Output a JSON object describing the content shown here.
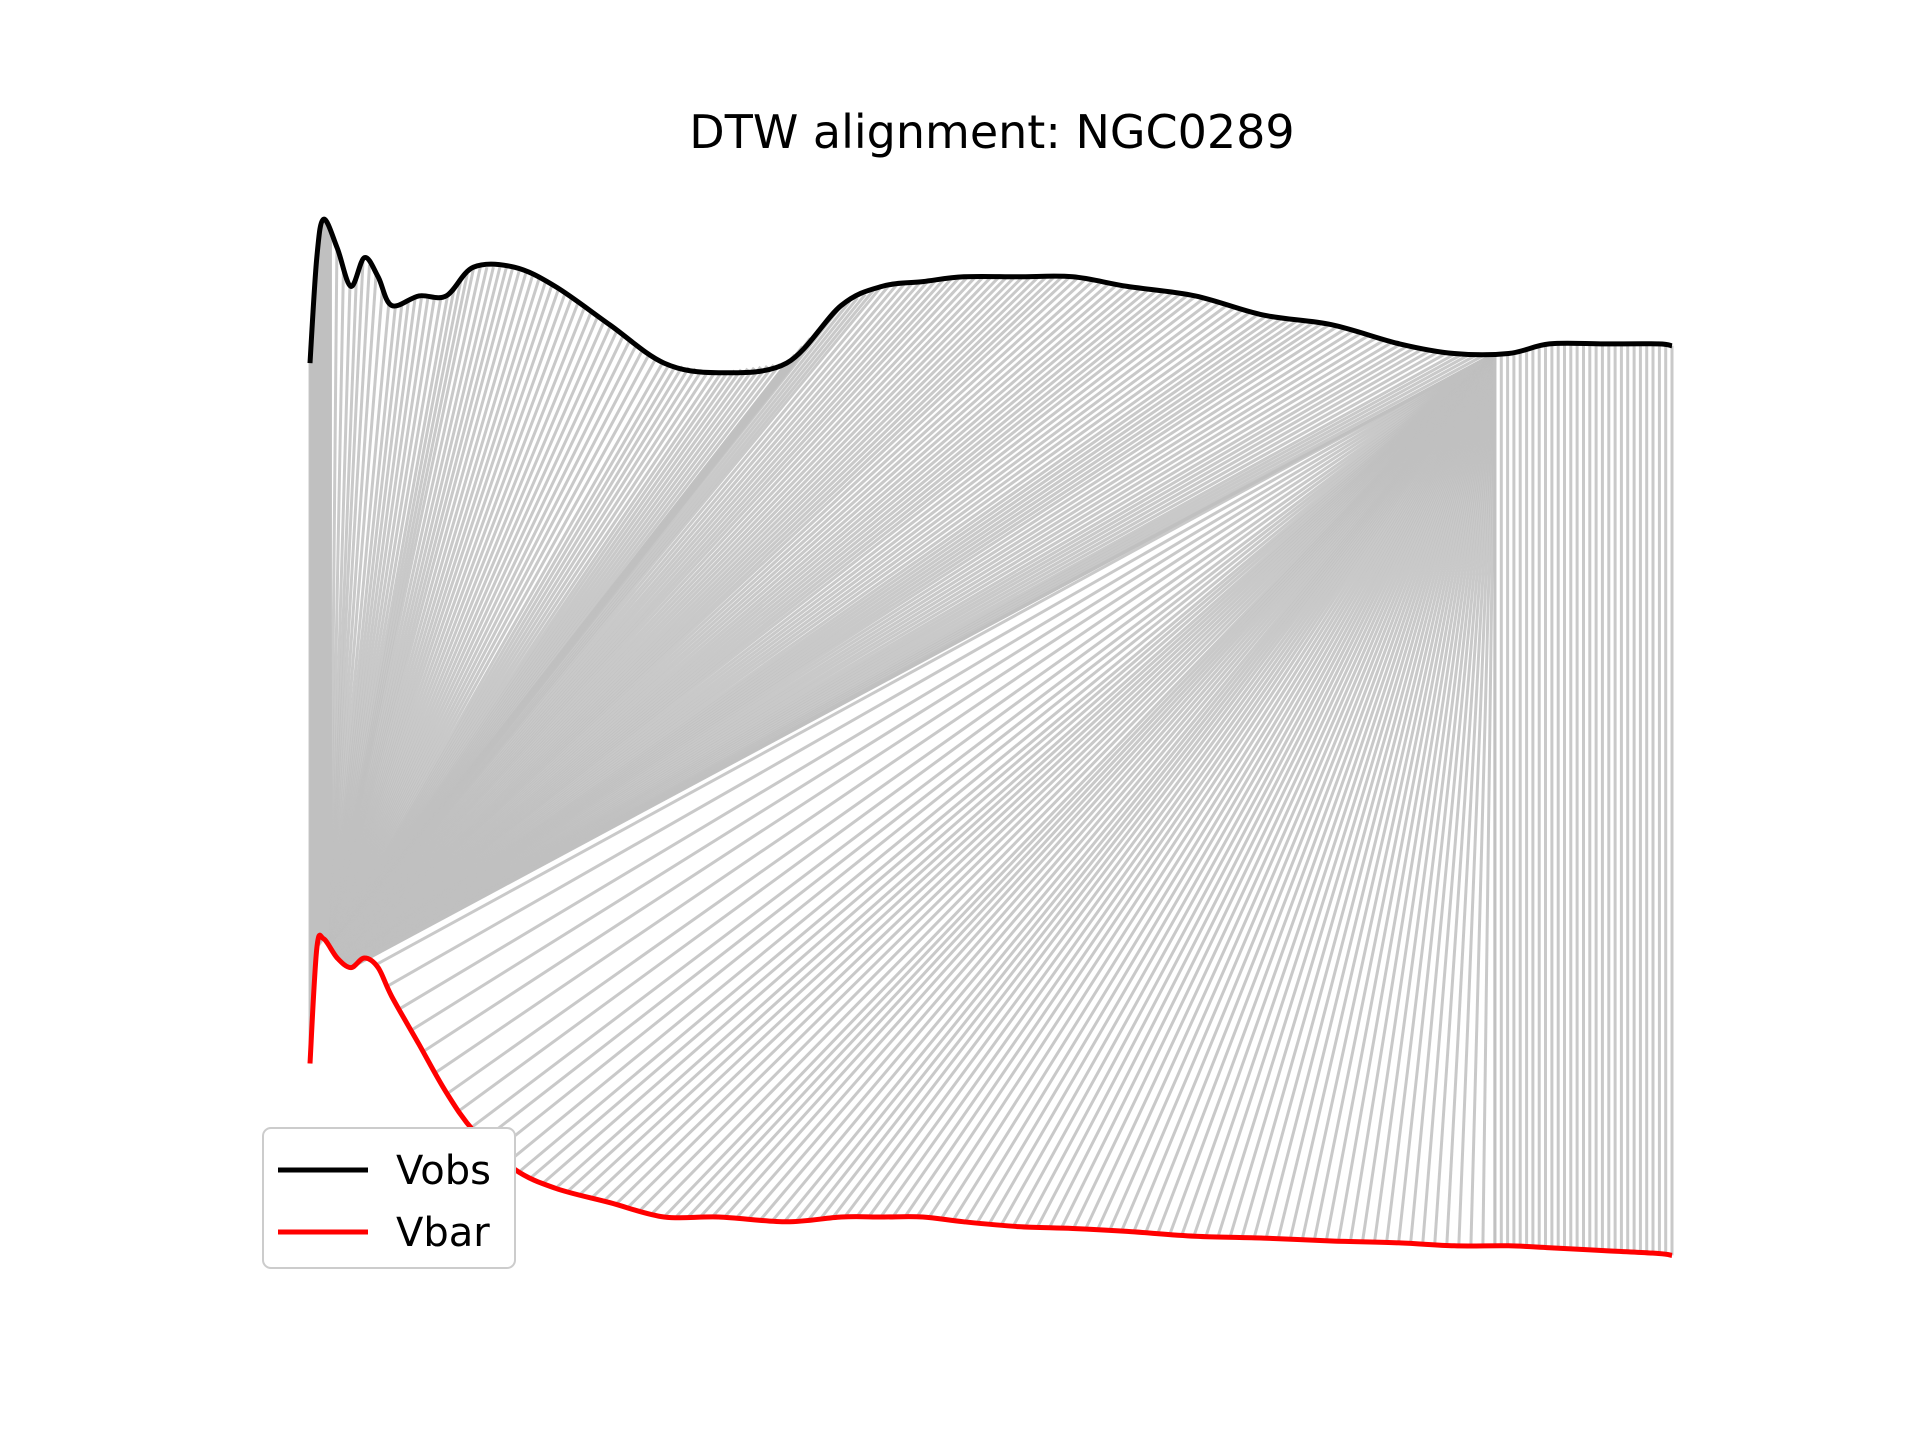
{
  "chart_data": {
    "type": "line",
    "title": "DTW alignment: NGC0289",
    "xlabel": "",
    "ylabel": "",
    "axes_visible": false,
    "grid": false,
    "legend_position": "lower-left",
    "x": [
      0.0,
      0.05,
      0.1,
      0.2,
      0.3,
      0.4,
      0.5,
      0.6,
      0.8,
      1.0,
      1.2,
      1.5,
      1.8,
      2.2,
      2.6,
      3.0,
      3.5,
      3.9,
      4.2,
      4.5,
      4.8,
      5.2,
      5.6,
      6.0,
      6.5,
      7.0,
      7.5,
      8.0,
      8.4,
      8.8,
      9.1,
      9.5,
      9.9,
      10.0
    ],
    "series": [
      {
        "name": "Vobs",
        "color": "#000000",
        "values": [
          7.3,
          8.4,
          8.8,
          8.5,
          8.1,
          8.4,
          8.2,
          7.9,
          8.0,
          8.0,
          8.3,
          8.3,
          8.1,
          7.7,
          7.3,
          7.2,
          7.3,
          7.9,
          8.1,
          8.15,
          8.2,
          8.2,
          8.2,
          8.1,
          8.0,
          7.8,
          7.7,
          7.5,
          7.4,
          7.4,
          7.5,
          7.5,
          7.5,
          7.48
        ]
      },
      {
        "name": "Vbar",
        "color": "#ff0000",
        "values": [
          0.0,
          1.2,
          1.3,
          1.1,
          1.0,
          1.1,
          1.0,
          0.7,
          0.2,
          -0.3,
          -0.7,
          -1.1,
          -1.3,
          -1.45,
          -1.6,
          -1.6,
          -1.65,
          -1.6,
          -1.6,
          -1.6,
          -1.65,
          -1.7,
          -1.72,
          -1.75,
          -1.8,
          -1.82,
          -1.85,
          -1.87,
          -1.9,
          -1.9,
          -1.92,
          -1.95,
          -1.98,
          -2.0
        ]
      }
    ],
    "alignment": {
      "color": "#c0c0c0",
      "segments": [
        {
          "obs_from": 0.0,
          "obs_to": 0.15,
          "bar_from": 0.0,
          "bar_to": 0.15
        },
        {
          "obs_from": 0.15,
          "obs_to": 3.5,
          "bar_from": 0.15,
          "bar_to": 0.15
        },
        {
          "obs_from": 3.5,
          "obs_to": 8.7,
          "bar_from": 0.15,
          "bar_to": 0.3
        },
        {
          "obs_from": 8.7,
          "obs_to": 8.7,
          "bar_from": 0.3,
          "bar_to": 8.7
        },
        {
          "obs_from": 8.7,
          "obs_to": 10.0,
          "bar_from": 8.7,
          "bar_to": 10.0
        }
      ]
    }
  }
}
